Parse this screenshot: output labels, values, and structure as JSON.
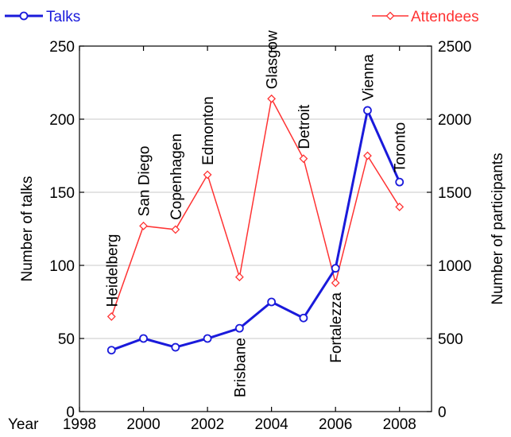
{
  "chart_data": {
    "type": "line",
    "x_label_prefix": "Year",
    "ylabel": "Number of talks",
    "y2label": "Number of participants",
    "xlim": [
      1998,
      2009
    ],
    "ylim": [
      0,
      250
    ],
    "y2lim": [
      0,
      2500
    ],
    "x_ticks": [
      "1998",
      "2000",
      "2002",
      "2004",
      "2006",
      "2008"
    ],
    "y_ticks": [
      "0",
      "50",
      "100",
      "150",
      "200",
      "250"
    ],
    "y2_ticks": [
      "0",
      "500",
      "1000",
      "1500",
      "2000",
      "2500"
    ],
    "grid": true,
    "legend_placement": "top",
    "colors": {
      "talks": "#1a1adb",
      "attendees": "#ff3333",
      "grid": "#c8c8c8"
    },
    "x": [
      1999,
      2000,
      2001,
      2002,
      2003,
      2004,
      2005,
      2006,
      2007,
      2008
    ],
    "series": [
      {
        "name": "Talks",
        "axis": "left",
        "marker": "circle",
        "values": [
          42,
          50,
          44,
          50,
          57,
          75,
          64,
          98,
          206,
          157
        ]
      },
      {
        "name": "Attendees",
        "axis": "right",
        "marker": "diamond",
        "values": [
          650,
          1270,
          1245,
          1620,
          920,
          2140,
          1730,
          880,
          1750,
          1400
        ]
      }
    ],
    "annotations": [
      {
        "text": "Heidelberg",
        "x": 1999,
        "placement": "above"
      },
      {
        "text": "San Diego",
        "x": 2000,
        "placement": "above"
      },
      {
        "text": "Copenhagen",
        "x": 2001,
        "placement": "above"
      },
      {
        "text": "Edmonton",
        "x": 2002,
        "placement": "above"
      },
      {
        "text": "Brisbane",
        "x": 2003,
        "placement": "below"
      },
      {
        "text": "Glasgow",
        "x": 2004,
        "placement": "above"
      },
      {
        "text": "Detroit",
        "x": 2005,
        "placement": "above"
      },
      {
        "text": "Fortalezza",
        "x": 2006,
        "placement": "below"
      },
      {
        "text": "Vienna",
        "x": 2007,
        "placement": "above"
      },
      {
        "text": "Toronto",
        "x": 2008,
        "placement": "above"
      }
    ]
  }
}
